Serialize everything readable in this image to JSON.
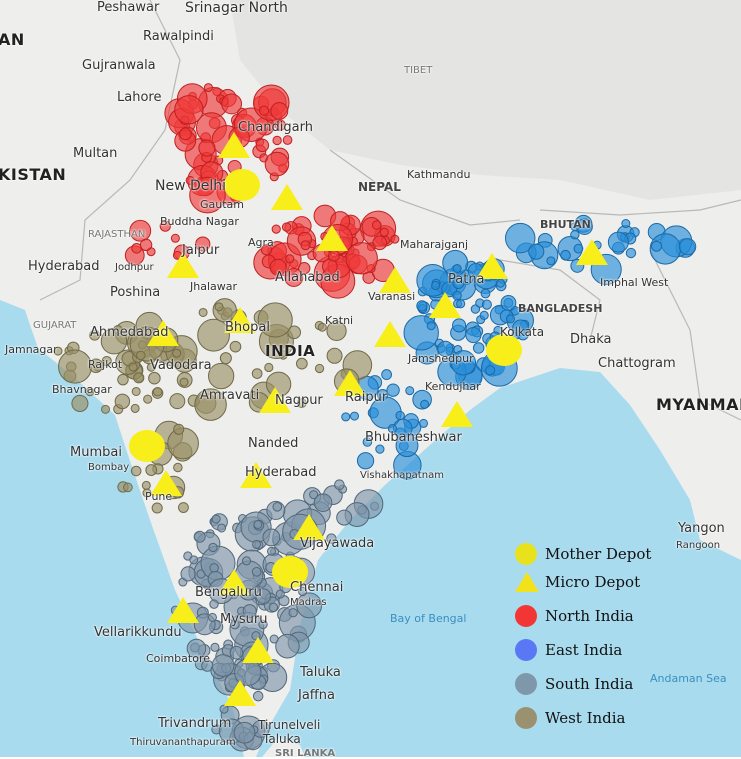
{
  "colors": {
    "sea": "#a9dbee",
    "land": "#eeeeec",
    "tibet": "#e2e2e0",
    "depot": "#f7ee1a",
    "north": "#f03a3a",
    "east": "#2a8fd8",
    "south": "#7f97aa",
    "west": "#9a9167"
  },
  "legend": [
    {
      "label": "Mother Depot",
      "shape": "circle",
      "color": "#e8e21c"
    },
    {
      "label": "Micro Depot",
      "shape": "triangle",
      "color": "#e8e21c"
    },
    {
      "label": "North India",
      "shape": "circle",
      "color": "#f43535"
    },
    {
      "label": "East India",
      "shape": "circle",
      "color": "#5a78f5"
    },
    {
      "label": "South India",
      "shape": "circle",
      "color": "#7f97aa"
    },
    {
      "label": "West India",
      "shape": "circle",
      "color": "#9a9170"
    }
  ],
  "places": {
    "peshawar": "Peshawar",
    "srinagar": "Srinagar North",
    "rawalpindi": "Rawalpindi",
    "gujranwala": "Gujranwala",
    "lahore": "Lahore",
    "multan": "Multan",
    "pakistan": "KISTAN",
    "afghan": "AN",
    "tibet": "TIBET",
    "nepal": "NEPAL",
    "kathmandu": "Kathmandu",
    "bhutan": "BHUTAN",
    "chandigarh": "Chandigarh",
    "newdelhi": "New Delhi",
    "gautam": "Gautam",
    "buddha": "Buddha Nagar",
    "rajasthan": "RAJASTHAN",
    "jaipur": "Jaipur",
    "agra": "Agra",
    "hyderabad_pk": "Hyderabad",
    "jodhpur": "Jodhpur",
    "poshina": "Poshina",
    "jhalawar": "Jhalawar",
    "allahabad": "Allahabad",
    "gujarat": "GUJARAT",
    "ahmedabad": "Ahmedabad",
    "jamnagar": "Jamnagar",
    "rajkot": "Rajkot",
    "vadodara": "Vadodara",
    "bhavnagar": "Bhavnagar",
    "bhopal": "Bhopal",
    "katni": "Katni",
    "india": "INDIA",
    "varanasi": "Varanasi",
    "maharajganj": "Maharajganj",
    "patna": "Patna",
    "bangladesh": "BANGLADESH",
    "dhaka": "Dhaka",
    "kolkata": "Kolkata",
    "jamshedpur": "Jamshedpur",
    "kendujhar": "Kendujhar",
    "raipur": "Raipur",
    "amravati": "Amravati",
    "nagpur": "Nagpur",
    "nanded": "Nanded",
    "mumbai": "Mumbai",
    "bombay": "Bombay",
    "pune": "Pune",
    "hyderabad": "Hyderabad",
    "bhubaneswar": "Bhubaneshwar",
    "vishakha": "Vishakhapatnam",
    "vijayawada": "Vijayawada",
    "chennai": "Chennai",
    "madras": "Madras",
    "bengaluru": "Bengaluru",
    "mysuru": "Mysuru",
    "vellarikkundu": "Vellarikkundu",
    "coimbatore": "Coimbatore",
    "taluka": "Taluka",
    "jaffna": "Jaffna",
    "trivandrum": "Trivandrum",
    "thiruvananthapuram": "Thiruvananthapuram",
    "tirunelveli": "Tirunelveli",
    "taluka2": "Taluka",
    "srilanka": "SRI LANKA",
    "bayofbengal": "Bay of Bengal",
    "andaman": "Andaman Sea",
    "chattogram": "Chattogram",
    "myanmar": "MYANMAR",
    "yangon": "Yangon",
    "rangoon": "Rangoon",
    "imphal": "Imphal West",
    "kolkata_short": "Kolkata"
  }
}
